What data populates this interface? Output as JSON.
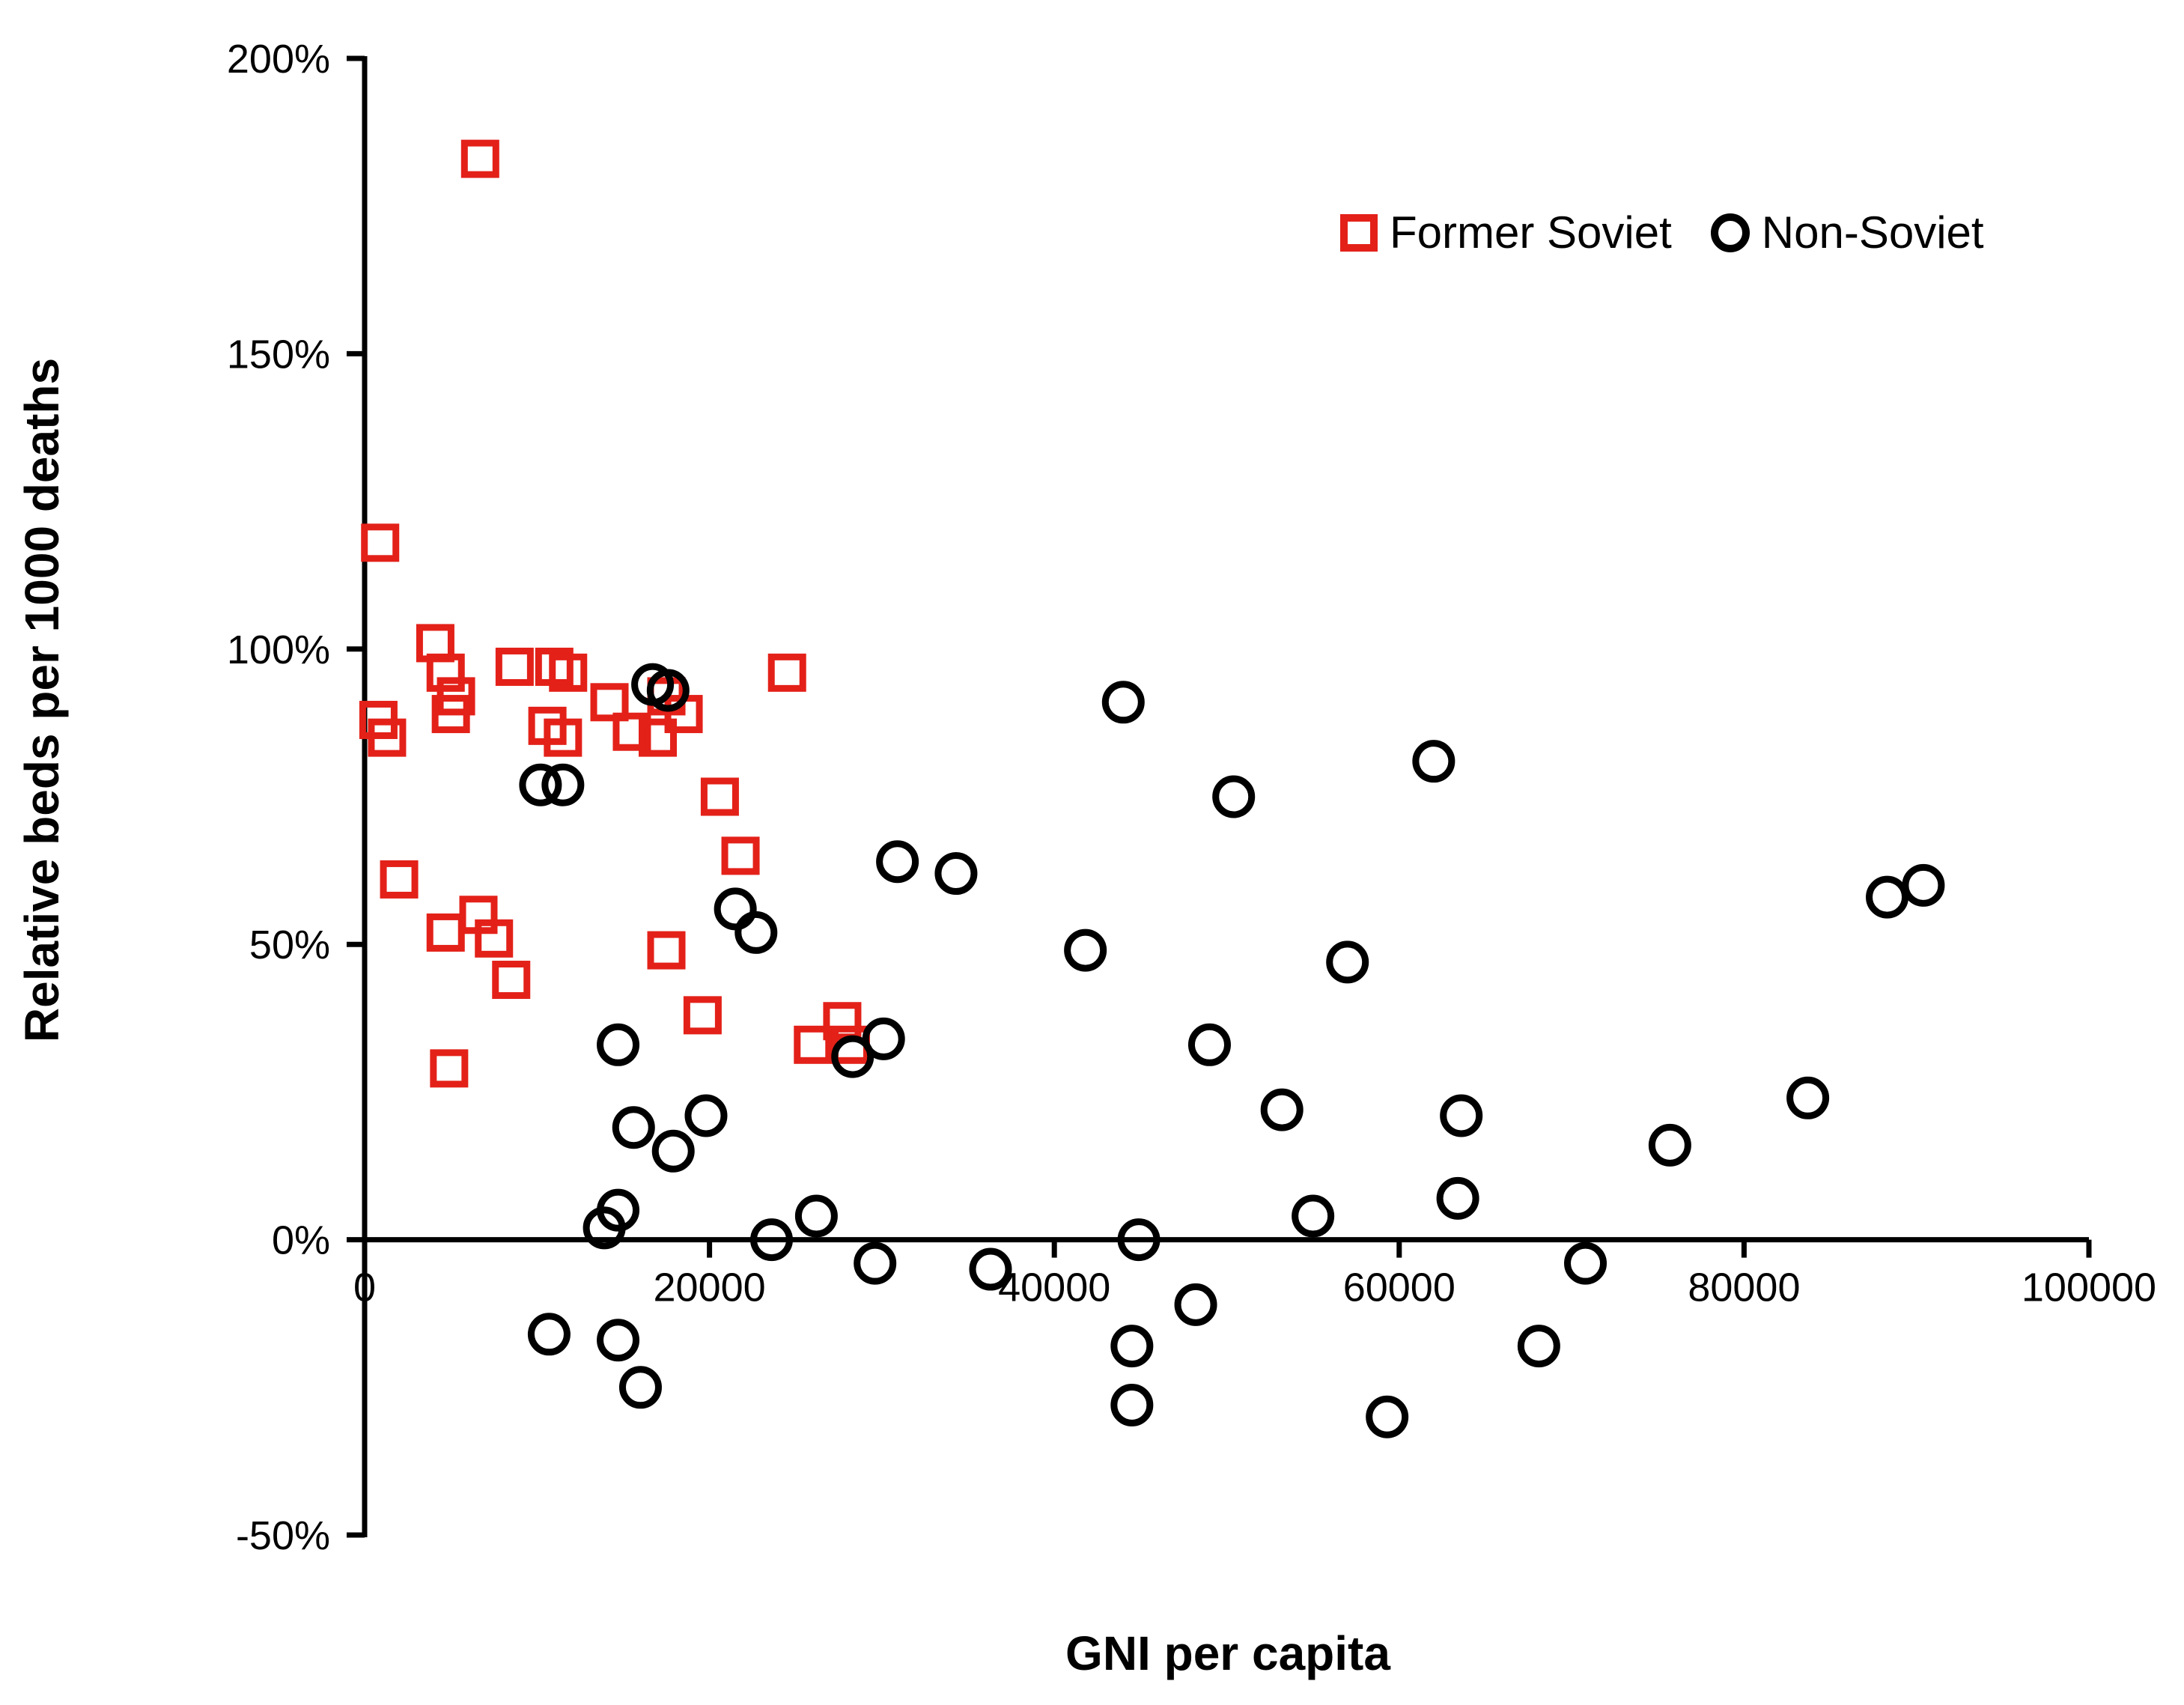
{
  "chart_data": {
    "type": "scatter",
    "title": "",
    "xlabel": "GNI per capita",
    "ylabel": "Relative beds per 1000 deaths",
    "xlim": [
      0,
      100000
    ],
    "ylim": [
      -50,
      200
    ],
    "xticks": [
      0,
      20000,
      40000,
      60000,
      80000,
      100000
    ],
    "yticks": [
      200,
      150,
      100,
      50,
      0,
      -50
    ],
    "ytick_format": "percent",
    "grid": false,
    "legend_position": "top-right-inside",
    "series": [
      {
        "name": "Former Soviet",
        "marker": "square",
        "color": "#e32119",
        "points": [
          [
            6700,
            183
          ],
          [
            900,
            118
          ],
          [
            800,
            88
          ],
          [
            1300,
            85
          ],
          [
            4100,
            101
          ],
          [
            4700,
            96
          ],
          [
            5300,
            92
          ],
          [
            5000,
            89
          ],
          [
            8700,
            97
          ],
          [
            11000,
            97
          ],
          [
            11800,
            96
          ],
          [
            10600,
            87
          ],
          [
            11500,
            85
          ],
          [
            14200,
            91
          ],
          [
            15500,
            86
          ],
          [
            17000,
            85
          ],
          [
            17500,
            92
          ],
          [
            18500,
            89
          ],
          [
            24500,
            96
          ],
          [
            20600,
            75
          ],
          [
            21800,
            65
          ],
          [
            2000,
            61
          ],
          [
            4700,
            52
          ],
          [
            6600,
            55
          ],
          [
            7500,
            51
          ],
          [
            8500,
            44
          ],
          [
            17500,
            49
          ],
          [
            19600,
            38
          ],
          [
            26000,
            33
          ],
          [
            27700,
            37
          ],
          [
            28200,
            33
          ],
          [
            4900,
            29
          ]
        ]
      },
      {
        "name": "Non-Soviet",
        "marker": "circle",
        "color": "#000000",
        "points": [
          [
            10200,
            77
          ],
          [
            11500,
            77
          ],
          [
            16700,
            94
          ],
          [
            17600,
            93
          ],
          [
            30900,
            64
          ],
          [
            34300,
            62
          ],
          [
            21500,
            56
          ],
          [
            22700,
            52
          ],
          [
            41800,
            49
          ],
          [
            44000,
            91
          ],
          [
            50400,
            75
          ],
          [
            62000,
            81
          ],
          [
            49000,
            33
          ],
          [
            53200,
            22
          ],
          [
            57000,
            47
          ],
          [
            63600,
            21
          ],
          [
            63400,
            7
          ],
          [
            55000,
            4
          ],
          [
            59300,
            -30
          ],
          [
            70800,
            -4
          ],
          [
            68100,
            -18
          ],
          [
            75700,
            16
          ],
          [
            83700,
            24
          ],
          [
            88300,
            58
          ],
          [
            90400,
            60
          ],
          [
            14700,
            33
          ],
          [
            15600,
            19
          ],
          [
            17900,
            15
          ],
          [
            19800,
            21
          ],
          [
            13900,
            2
          ],
          [
            14700,
            5
          ],
          [
            23600,
            0
          ],
          [
            26200,
            4
          ],
          [
            28300,
            31
          ],
          [
            30100,
            34
          ],
          [
            29600,
            -4
          ],
          [
            36300,
            -5
          ],
          [
            44900,
            0
          ],
          [
            48200,
            -11
          ],
          [
            44500,
            -18
          ],
          [
            44500,
            -28
          ],
          [
            10700,
            -16
          ],
          [
            14700,
            -17
          ],
          [
            16000,
            -25
          ]
        ]
      }
    ]
  }
}
